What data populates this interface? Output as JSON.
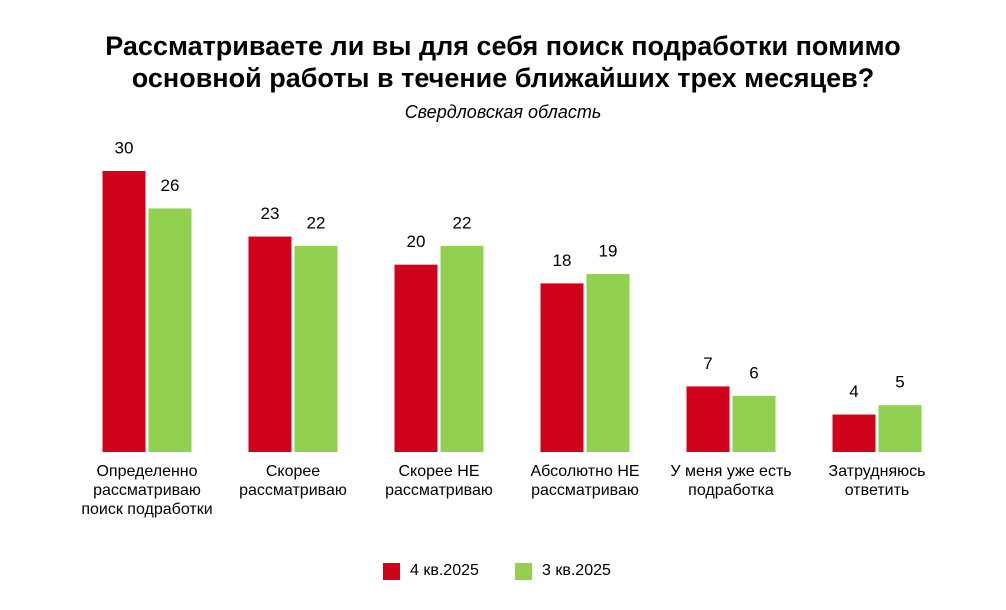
{
  "chart_data": {
    "type": "bar",
    "title": "Рассматриваете ли вы для себя поиск подработки помимо основной работы в течение ближайших трех месяцев?",
    "subtitle": "Свердловская область",
    "categories": [
      "Определенно рассматриваю поиск подработки",
      "Скорее рассматриваю",
      "Скорее НЕ рассматриваю",
      "Абсолютно НЕ рассматриваю",
      "У меня уже есть подработка",
      "Затрудняюсь ответить"
    ],
    "series": [
      {
        "name": "4 кв.2025",
        "color": "#d0021b",
        "values": [
          30,
          23,
          20,
          18,
          7,
          4
        ]
      },
      {
        "name": "3 кв.2025",
        "color": "#92d050",
        "values": [
          26,
          22,
          22,
          19,
          6,
          5
        ]
      }
    ]
  }
}
